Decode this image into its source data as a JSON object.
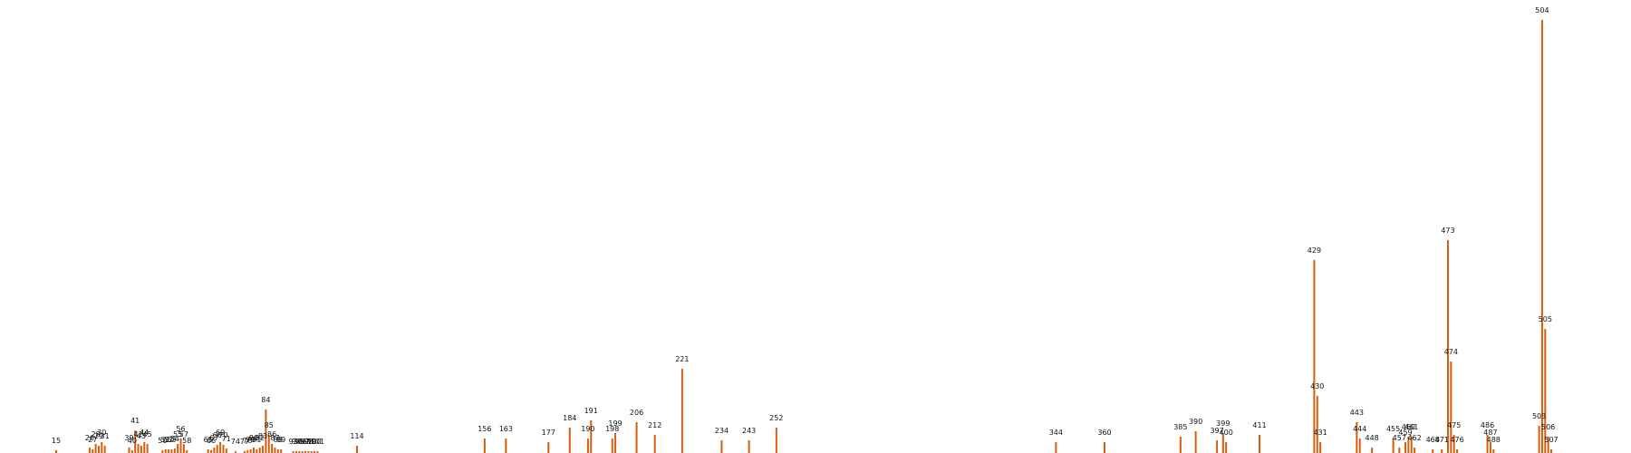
{
  "chart_data": {
    "type": "bar",
    "bar_color": "#d65f0e",
    "title": "",
    "xlabel": "",
    "ylabel": "",
    "ylim": [
      0,
      600
    ],
    "grid": false,
    "legend": "none",
    "bars": [
      {
        "x": 15,
        "value": 3,
        "label": "15"
      },
      {
        "x": 26,
        "value": 6,
        "label": "26"
      },
      {
        "x": 27,
        "value": 4,
        "label": "27"
      },
      {
        "x": 28,
        "value": 10,
        "label": "28"
      },
      {
        "x": 29,
        "value": 8,
        "label": "29"
      },
      {
        "x": 30,
        "value": 12,
        "label": "30"
      },
      {
        "x": 31,
        "value": 8,
        "label": "31"
      },
      {
        "x": 39,
        "value": 6,
        "label": "39"
      },
      {
        "x": 40,
        "value": 3,
        "label": "40"
      },
      {
        "x": 41,
        "value": 25,
        "label": "41"
      },
      {
        "x": 42,
        "value": 10,
        "label": "42"
      },
      {
        "x": 43,
        "value": 8,
        "label": "43"
      },
      {
        "x": 44,
        "value": 12,
        "label": "44"
      },
      {
        "x": 45,
        "value": 10,
        "label": "45"
      },
      {
        "x": 50,
        "value": 3,
        "label": "50"
      },
      {
        "x": 51,
        "value": 4,
        "label": "51"
      },
      {
        "x": 52,
        "value": 4,
        "label": "52"
      },
      {
        "x": 53,
        "value": 4,
        "label": "53"
      },
      {
        "x": 54,
        "value": 5,
        "label": "54"
      },
      {
        "x": 55,
        "value": 10,
        "label": "55"
      },
      {
        "x": 56,
        "value": 16,
        "label": "56"
      },
      {
        "x": 57,
        "value": 10,
        "label": "57"
      },
      {
        "x": 58,
        "value": 3,
        "label": "58"
      },
      {
        "x": 65,
        "value": 4,
        "label": "65"
      },
      {
        "x": 66,
        "value": 3,
        "label": "66"
      },
      {
        "x": 67,
        "value": 6,
        "label": "67"
      },
      {
        "x": 68,
        "value": 9,
        "label": "68"
      },
      {
        "x": 69,
        "value": 12,
        "label": "69"
      },
      {
        "x": 70,
        "value": 9,
        "label": "70"
      },
      {
        "x": 71,
        "value": 5,
        "label": "71"
      },
      {
        "x": 74,
        "value": 2,
        "label": "74"
      },
      {
        "x": 77,
        "value": 2,
        "label": "77"
      },
      {
        "x": 78,
        "value": 3,
        "label": "78"
      },
      {
        "x": 79,
        "value": 4,
        "label": "79"
      },
      {
        "x": 80,
        "value": 6,
        "label": "80"
      },
      {
        "x": 81,
        "value": 4,
        "label": "81"
      },
      {
        "x": 82,
        "value": 6,
        "label": "82"
      },
      {
        "x": 83,
        "value": 8,
        "label": "83"
      },
      {
        "x": 84,
        "value": 48,
        "label": "84"
      },
      {
        "x": 85,
        "value": 20,
        "label": "85"
      },
      {
        "x": 86,
        "value": 10,
        "label": "86"
      },
      {
        "x": 87,
        "value": 6,
        "label": "87"
      },
      {
        "x": 88,
        "value": 4,
        "label": "88"
      },
      {
        "x": 89,
        "value": 4,
        "label": "89"
      },
      {
        "x": 93,
        "value": 2,
        "label": "93"
      },
      {
        "x": 94,
        "value": 2,
        "label": "94"
      },
      {
        "x": 95,
        "value": 2,
        "label": "95"
      },
      {
        "x": 96,
        "value": 2,
        "label": "96"
      },
      {
        "x": 97,
        "value": 2,
        "label": "97"
      },
      {
        "x": 98,
        "value": 2,
        "label": "98"
      },
      {
        "x": 99,
        "value": 2,
        "label": "99"
      },
      {
        "x": 100,
        "value": 2,
        "label": "100"
      },
      {
        "x": 101,
        "value": 2,
        "label": "101"
      },
      {
        "x": 114,
        "value": 8,
        "label": "114"
      },
      {
        "x": 156,
        "value": 16,
        "label": "156"
      },
      {
        "x": 163,
        "value": 16,
        "label": "163"
      },
      {
        "x": 177,
        "value": 12,
        "label": "177"
      },
      {
        "x": 184,
        "value": 28,
        "label": "184"
      },
      {
        "x": 190,
        "value": 16,
        "label": "190"
      },
      {
        "x": 191,
        "value": 36,
        "label": "191"
      },
      {
        "x": 198,
        "value": 16,
        "label": "198"
      },
      {
        "x": 199,
        "value": 22,
        "label": "199"
      },
      {
        "x": 206,
        "value": 34,
        "label": "206"
      },
      {
        "x": 212,
        "value": 20,
        "label": "212"
      },
      {
        "x": 221,
        "value": 93,
        "label": "221"
      },
      {
        "x": 234,
        "value": 14,
        "label": "234"
      },
      {
        "x": 243,
        "value": 14,
        "label": "243"
      },
      {
        "x": 252,
        "value": 28,
        "label": "252"
      },
      {
        "x": 344,
        "value": 12,
        "label": "344"
      },
      {
        "x": 360,
        "value": 12,
        "label": "360"
      },
      {
        "x": 385,
        "value": 18,
        "label": "385"
      },
      {
        "x": 390,
        "value": 24,
        "label": "390"
      },
      {
        "x": 397,
        "value": 14,
        "label": "397"
      },
      {
        "x": 399,
        "value": 22,
        "label": "399"
      },
      {
        "x": 400,
        "value": 12,
        "label": "400"
      },
      {
        "x": 411,
        "value": 20,
        "label": "411"
      },
      {
        "x": 429,
        "value": 213,
        "label": "429"
      },
      {
        "x": 430,
        "value": 63,
        "label": "430"
      },
      {
        "x": 431,
        "value": 12,
        "label": "431"
      },
      {
        "x": 443,
        "value": 34,
        "label": "443"
      },
      {
        "x": 444,
        "value": 16,
        "label": "444"
      },
      {
        "x": 448,
        "value": 6,
        "label": "448"
      },
      {
        "x": 455,
        "value": 16,
        "label": "455"
      },
      {
        "x": 457,
        "value": 6,
        "label": "457"
      },
      {
        "x": 459,
        "value": 12,
        "label": "459"
      },
      {
        "x": 460,
        "value": 18,
        "label": "460"
      },
      {
        "x": 461,
        "value": 18,
        "label": "461"
      },
      {
        "x": 462,
        "value": 6,
        "label": "462"
      },
      {
        "x": 468,
        "value": 4,
        "label": "468"
      },
      {
        "x": 471,
        "value": 4,
        "label": "471"
      },
      {
        "x": 473,
        "value": 235,
        "label": "473"
      },
      {
        "x": 474,
        "value": 101,
        "label": "474"
      },
      {
        "x": 475,
        "value": 20,
        "label": "475"
      },
      {
        "x": 476,
        "value": 4,
        "label": "476"
      },
      {
        "x": 486,
        "value": 20,
        "label": "486"
      },
      {
        "x": 487,
        "value": 12,
        "label": "487"
      },
      {
        "x": 488,
        "value": 4,
        "label": "488"
      },
      {
        "x": 503,
        "value": 30,
        "label": "503"
      },
      {
        "x": 504,
        "value": 478,
        "label": "504"
      },
      {
        "x": 505,
        "value": 137,
        "label": "505"
      },
      {
        "x": 506,
        "value": 18,
        "label": "506"
      },
      {
        "x": 507,
        "value": 4,
        "label": "507"
      }
    ]
  }
}
